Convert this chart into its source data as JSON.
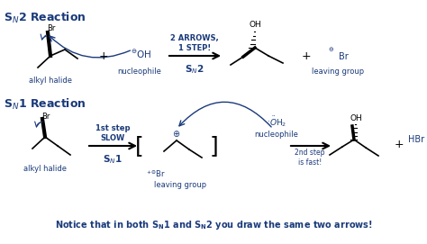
{
  "bg_color": "#ffffff",
  "blue": "#1a3a7a",
  "black": "#000000",
  "fig_width": 4.74,
  "fig_height": 2.71,
  "dpi": 100,
  "sn2_title": "S$_{N}$2 Reaction",
  "sn1_title": "S$_{N}$1 Reaction",
  "footer": "Notice that in both S${_\\mathbf{N}}$1 and S${_\\mathbf{N}}$2 you draw the same two arrows!",
  "sn2_arrows_label": "2 ARROWS,\n1 STEP!",
  "sn2_rxn_label": "S$_{N}$2",
  "sn2_alkyl_label": "alkyl halide",
  "sn2_nuc_label": "nucleophile",
  "sn2_lg_label": "leaving group",
  "sn1_step1_label": "1st step\nSLOW",
  "sn1_rxn_label": "S$_{N}$1",
  "sn1_alkyl_label": "alkyl halide",
  "sn1_nuc_label": "nucleophile",
  "sn1_lg_label": "leaving group",
  "sn1_step2_label": "2nd step\nis fast!"
}
